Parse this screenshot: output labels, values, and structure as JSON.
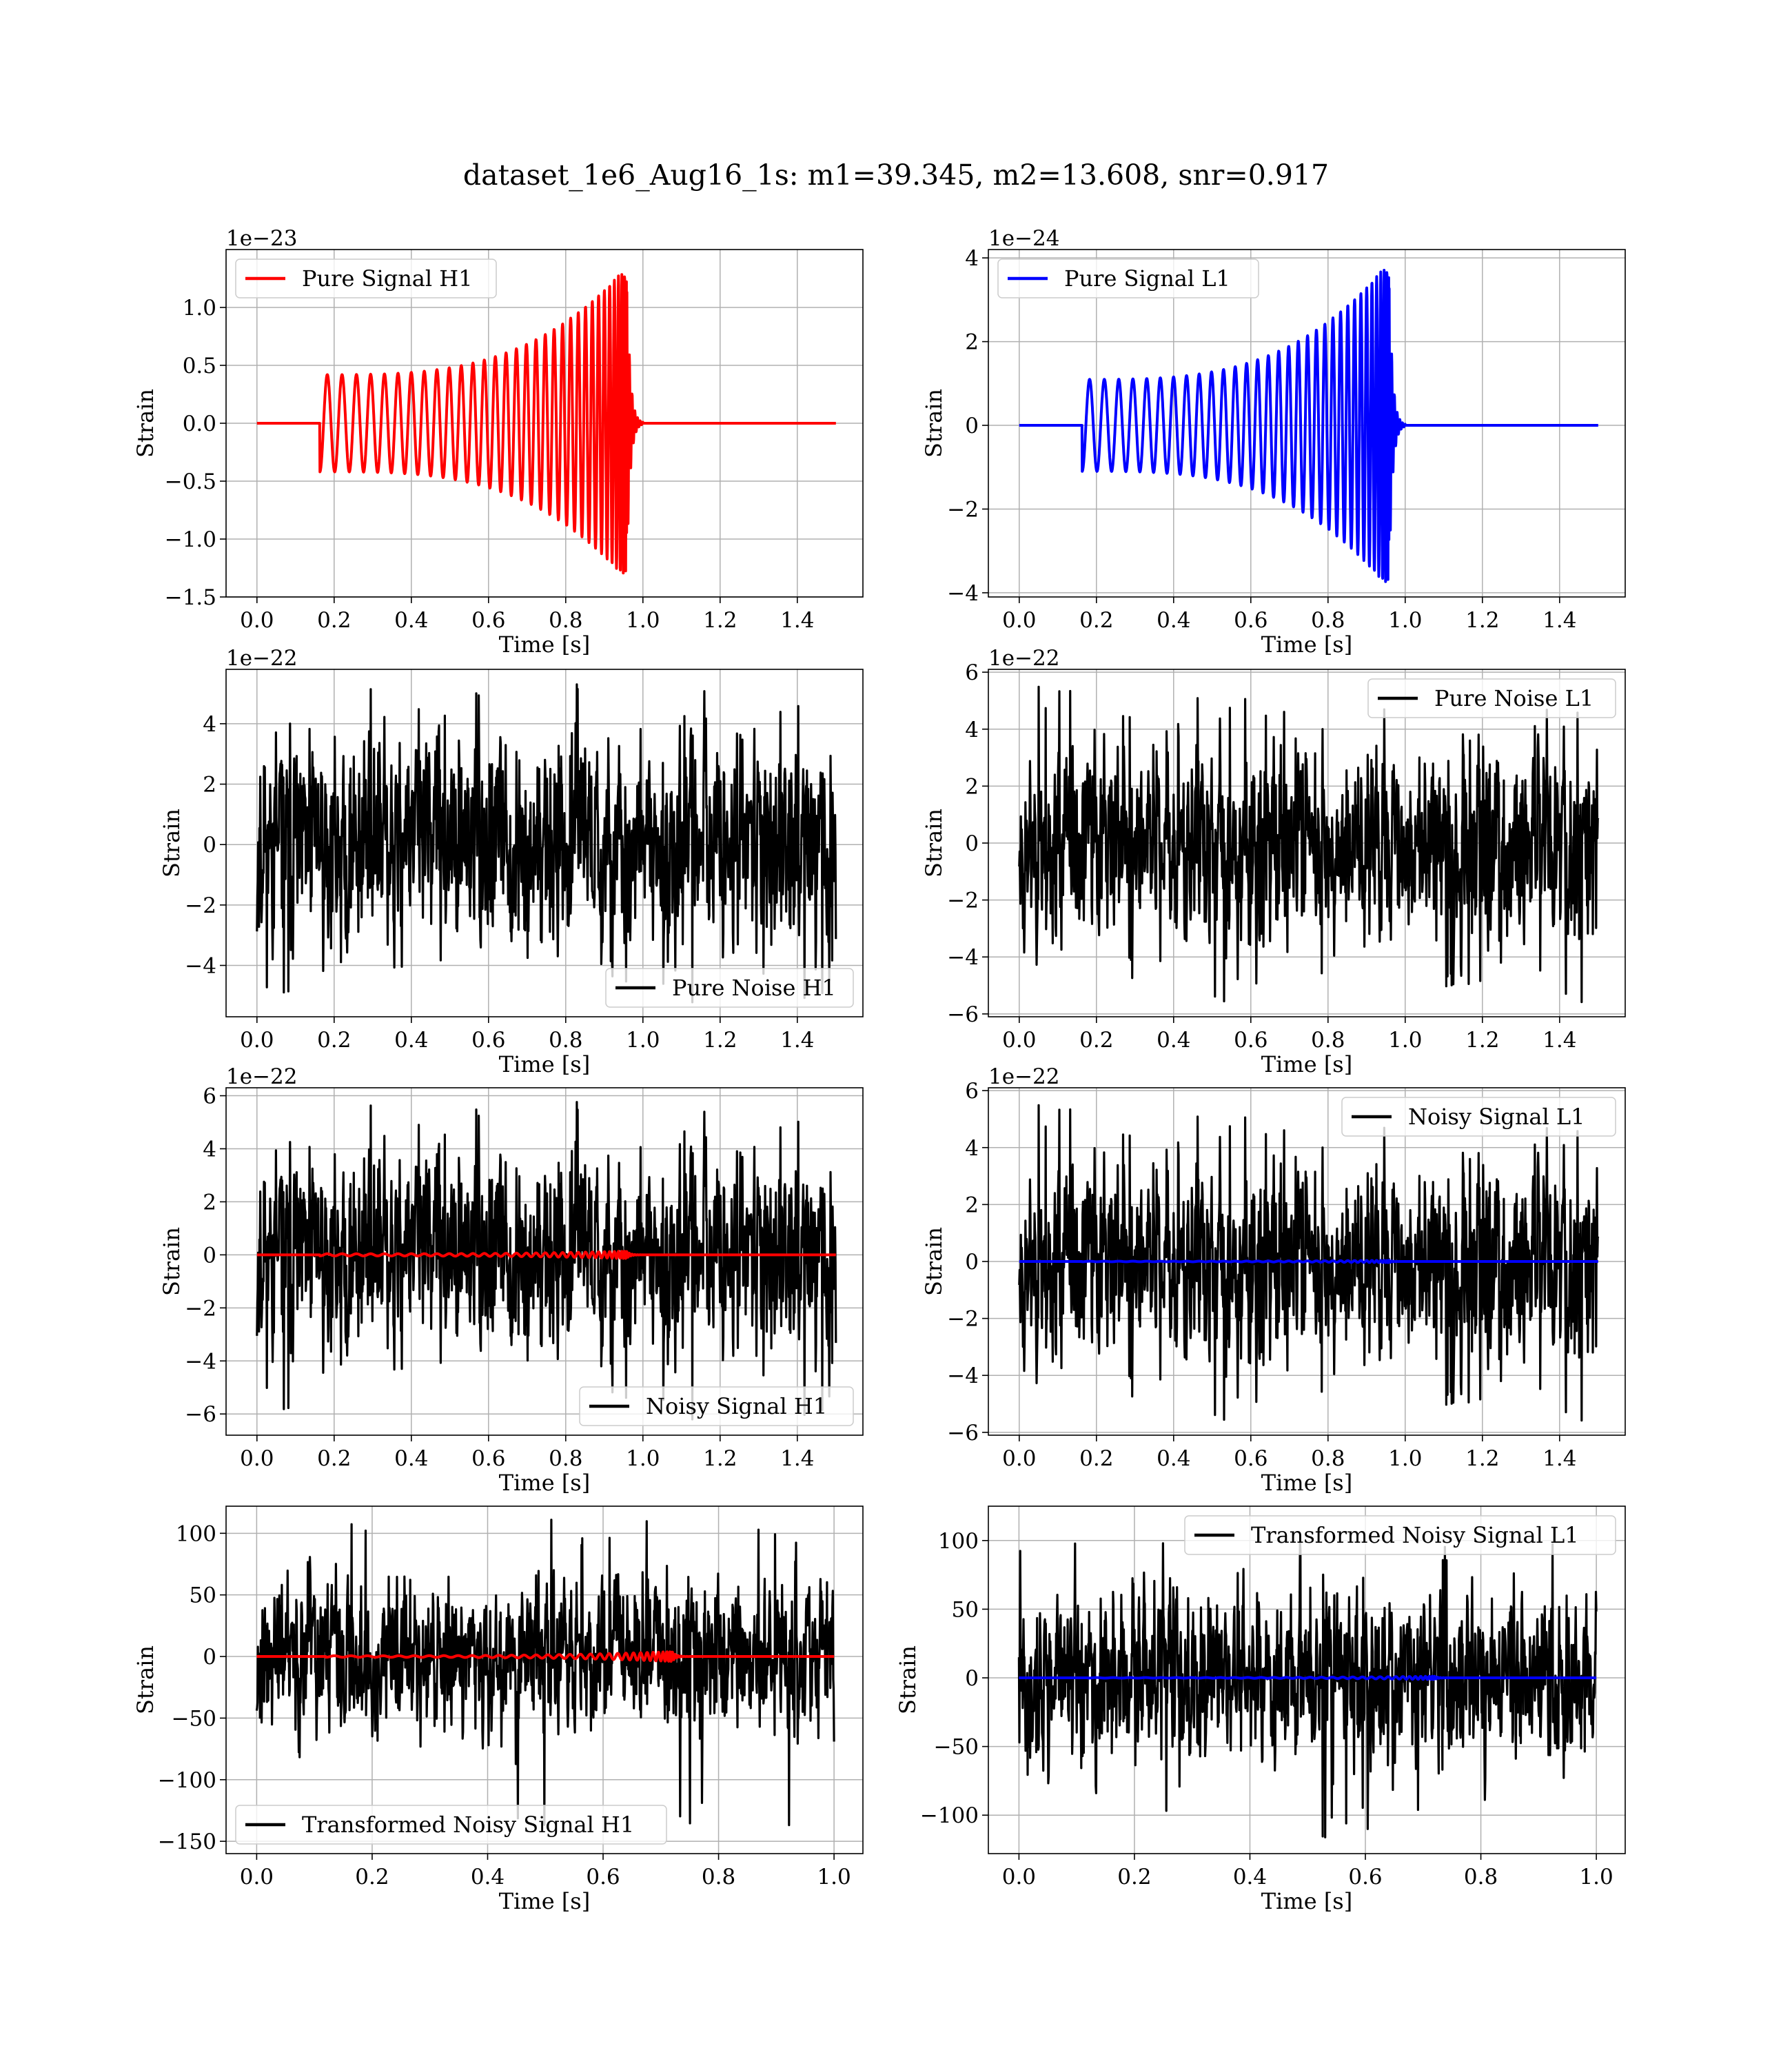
{
  "figure": {
    "suptitle": "dataset_1e6_Aug16_1s: m1=39.345, m2=13.608, snr=0.917"
  },
  "colors": {
    "h1_signal": "#ff0000",
    "l1_signal": "#0000ff",
    "noise": "#000000",
    "grid": "#b0b0b0"
  },
  "chart_data": [
    {
      "id": "pure-signal-h1",
      "type": "line",
      "title": "",
      "xlabel": "Time [s]",
      "ylabel": "Strain",
      "offset": "1e−23",
      "xlim": [
        -0.08,
        1.57
      ],
      "ylim": [
        -1.5,
        1.5
      ],
      "grid": true,
      "legend_position": "upper left",
      "xticks": [
        0.0,
        0.2,
        0.4,
        0.6,
        0.8,
        1.0,
        1.2,
        1.4
      ],
      "xtick_labels": [
        "0.0",
        "0.2",
        "0.4",
        "0.6",
        "0.8",
        "1.0",
        "1.2",
        "1.4"
      ],
      "yticks": [
        -1.5,
        -1.0,
        -0.5,
        0.0,
        0.5,
        1.0
      ],
      "ytick_labels": [
        "−1.5",
        "−1.0",
        "−0.5",
        "0.0",
        "0.5",
        "1.0"
      ],
      "series": [
        {
          "name": "Pure Signal H1",
          "color": "#ff0000",
          "kind": "chirp",
          "x_range": [
            0,
            1.5
          ],
          "onset": 0.163,
          "merger": 0.958,
          "ringdown_end": 1.0,
          "amp_start": 0.42,
          "amp_peak": 1.35,
          "cycles": 33
        }
      ]
    },
    {
      "id": "pure-signal-l1",
      "type": "line",
      "title": "",
      "xlabel": "Time [s]",
      "ylabel": "Strain",
      "offset": "1e−24",
      "xlim": [
        -0.08,
        1.57
      ],
      "ylim": [
        -4.1,
        4.2
      ],
      "grid": true,
      "legend_position": "upper left",
      "xticks": [
        0.0,
        0.2,
        0.4,
        0.6,
        0.8,
        1.0,
        1.2,
        1.4
      ],
      "xtick_labels": [
        "0.0",
        "0.2",
        "0.4",
        "0.6",
        "0.8",
        "1.0",
        "1.2",
        "1.4"
      ],
      "yticks": [
        -4,
        -2,
        0,
        2,
        4
      ],
      "ytick_labels": [
        "−4",
        "−2",
        "0",
        "2",
        "4"
      ],
      "series": [
        {
          "name": "Pure Signal L1",
          "color": "#0000ff",
          "kind": "chirp",
          "x_range": [
            0,
            1.5
          ],
          "onset": 0.163,
          "merger": 0.958,
          "ringdown_end": 1.0,
          "amp_start": 1.1,
          "amp_peak": 3.9,
          "cycles": 33
        }
      ]
    },
    {
      "id": "pure-noise-h1",
      "type": "line",
      "title": "",
      "xlabel": "Time [s]",
      "ylabel": "Strain",
      "offset": "1e−22",
      "xlim": [
        -0.08,
        1.57
      ],
      "ylim": [
        -5.7,
        5.8
      ],
      "grid": true,
      "legend_position": "lower right",
      "xticks": [
        0.0,
        0.2,
        0.4,
        0.6,
        0.8,
        1.0,
        1.2,
        1.4
      ],
      "xtick_labels": [
        "0.0",
        "0.2",
        "0.4",
        "0.6",
        "0.8",
        "1.0",
        "1.2",
        "1.4"
      ],
      "yticks": [
        -4,
        -2,
        0,
        2,
        4
      ],
      "ytick_labels": [
        "−4",
        "−2",
        "0",
        "2",
        "4"
      ],
      "series": [
        {
          "name": "Pure Noise H1",
          "color": "#000000",
          "kind": "noise",
          "x_range": [
            0,
            1.5
          ],
          "amplitude": 1.6,
          "min": -5.3,
          "max": 5.3,
          "seed": 11
        }
      ]
    },
    {
      "id": "pure-noise-l1",
      "type": "line",
      "title": "",
      "xlabel": "Time [s]",
      "ylabel": "Strain",
      "offset": "1e−22",
      "xlim": [
        -0.08,
        1.57
      ],
      "ylim": [
        -6.1,
        6.1
      ],
      "grid": true,
      "legend_position": "upper right",
      "xticks": [
        0.0,
        0.2,
        0.4,
        0.6,
        0.8,
        1.0,
        1.2,
        1.4
      ],
      "xtick_labels": [
        "0.0",
        "0.2",
        "0.4",
        "0.6",
        "0.8",
        "1.0",
        "1.2",
        "1.4"
      ],
      "yticks": [
        -6,
        -4,
        -2,
        0,
        2,
        4,
        6
      ],
      "ytick_labels": [
        "−6",
        "−4",
        "−2",
        "0",
        "2",
        "4",
        "6"
      ],
      "series": [
        {
          "name": "Pure Noise L1",
          "color": "#000000",
          "kind": "noise",
          "x_range": [
            0,
            1.5
          ],
          "amplitude": 1.6,
          "min": -5.6,
          "max": 5.5,
          "seed": 23
        }
      ]
    },
    {
      "id": "noisy-signal-h1",
      "type": "line",
      "title": "",
      "xlabel": "Time [s]",
      "ylabel": "Strain",
      "offset": "1e−22",
      "xlim": [
        -0.08,
        1.57
      ],
      "ylim": [
        -6.8,
        6.3
      ],
      "grid": true,
      "legend_position": "lower right",
      "xticks": [
        0.0,
        0.2,
        0.4,
        0.6,
        0.8,
        1.0,
        1.2,
        1.4
      ],
      "xtick_labels": [
        "0.0",
        "0.2",
        "0.4",
        "0.6",
        "0.8",
        "1.0",
        "1.2",
        "1.4"
      ],
      "yticks": [
        -6,
        -4,
        -2,
        0,
        2,
        4,
        6
      ],
      "ytick_labels": [
        "−6",
        "−4",
        "−2",
        "0",
        "2",
        "4",
        "6"
      ],
      "series": [
        {
          "name": "Noisy Signal H1",
          "color": "#000000",
          "kind": "noise",
          "x_range": [
            0,
            1.5
          ],
          "amplitude": 1.7,
          "min": -6.3,
          "max": 5.8,
          "seed": 11
        },
        {
          "name": "",
          "color": "#ff0000",
          "kind": "chirp",
          "x_range": [
            0,
            1.5
          ],
          "onset": 0.163,
          "merger": 0.958,
          "ringdown_end": 1.0,
          "amp_start": 0.04,
          "amp_peak": 0.14,
          "cycles": 33
        }
      ]
    },
    {
      "id": "noisy-signal-l1",
      "type": "line",
      "title": "",
      "xlabel": "Time [s]",
      "ylabel": "Strain",
      "offset": "1e−22",
      "xlim": [
        -0.08,
        1.57
      ],
      "ylim": [
        -6.1,
        6.1
      ],
      "grid": true,
      "legend_position": "upper right",
      "xticks": [
        0.0,
        0.2,
        0.4,
        0.6,
        0.8,
        1.0,
        1.2,
        1.4
      ],
      "xtick_labels": [
        "0.0",
        "0.2",
        "0.4",
        "0.6",
        "0.8",
        "1.0",
        "1.2",
        "1.4"
      ],
      "yticks": [
        -6,
        -4,
        -2,
        0,
        2,
        4,
        6
      ],
      "ytick_labels": [
        "−6",
        "−4",
        "−2",
        "0",
        "2",
        "4",
        "6"
      ],
      "series": [
        {
          "name": "Noisy Signal L1",
          "color": "#000000",
          "kind": "noise",
          "x_range": [
            0,
            1.5
          ],
          "amplitude": 1.6,
          "min": -5.6,
          "max": 5.5,
          "seed": 23
        },
        {
          "name": "",
          "color": "#0000ff",
          "kind": "chirp",
          "x_range": [
            0,
            1.5
          ],
          "onset": 0.163,
          "merger": 0.958,
          "ringdown_end": 1.0,
          "amp_start": 0.01,
          "amp_peak": 0.04,
          "cycles": 33
        }
      ]
    },
    {
      "id": "transformed-noisy-signal-h1",
      "type": "line",
      "title": "",
      "xlabel": "Time [s]",
      "ylabel": "Strain",
      "offset": "",
      "xlim": [
        -0.053,
        1.05
      ],
      "ylim": [
        -160,
        122
      ],
      "grid": true,
      "legend_position": "lower left",
      "xticks": [
        0.0,
        0.2,
        0.4,
        0.6,
        0.8,
        1.0
      ],
      "xtick_labels": [
        "0.0",
        "0.2",
        "0.4",
        "0.6",
        "0.8",
        "1.0"
      ],
      "yticks": [
        -150,
        -100,
        -50,
        0,
        50,
        100
      ],
      "ytick_labels": [
        "−150",
        "−100",
        "−50",
        "0",
        "50",
        "100"
      ],
      "series": [
        {
          "name": "Transformed Noisy Signal H1",
          "color": "#000000",
          "kind": "noise",
          "x_range": [
            0,
            1.0
          ],
          "amplitude": 28,
          "min": -148,
          "max": 113,
          "seed": 37
        },
        {
          "name": "",
          "color": "#ff0000",
          "kind": "chirp",
          "x_range": [
            0,
            1.0
          ],
          "onset": 0.12,
          "merger": 0.72,
          "ringdown_end": 0.75,
          "amp_start": 0.6,
          "amp_peak": 4,
          "cycles": 33
        }
      ]
    },
    {
      "id": "transformed-noisy-signal-l1",
      "type": "line",
      "title": "",
      "xlabel": "Time [s]",
      "ylabel": "Strain",
      "offset": "",
      "xlim": [
        -0.053,
        1.05
      ],
      "ylim": [
        -128,
        125
      ],
      "grid": true,
      "legend_position": "upper right",
      "xticks": [
        0.0,
        0.2,
        0.4,
        0.6,
        0.8,
        1.0
      ],
      "xtick_labels": [
        "0.0",
        "0.2",
        "0.4",
        "0.6",
        "0.8",
        "1.0"
      ],
      "yticks": [
        -100,
        -50,
        0,
        50,
        100
      ],
      "ytick_labels": [
        "−100",
        "−50",
        "0",
        "50",
        "100"
      ],
      "series": [
        {
          "name": "Transformed Noisy Signal L1",
          "color": "#000000",
          "kind": "noise",
          "x_range": [
            0,
            1.0
          ],
          "amplitude": 27,
          "min": -117,
          "max": 100,
          "seed": 41
        },
        {
          "name": "",
          "color": "#0000ff",
          "kind": "chirp",
          "x_range": [
            0,
            1.0
          ],
          "onset": 0.12,
          "merger": 0.72,
          "ringdown_end": 0.75,
          "amp_start": 0.2,
          "amp_peak": 1.2,
          "cycles": 33
        }
      ]
    }
  ]
}
